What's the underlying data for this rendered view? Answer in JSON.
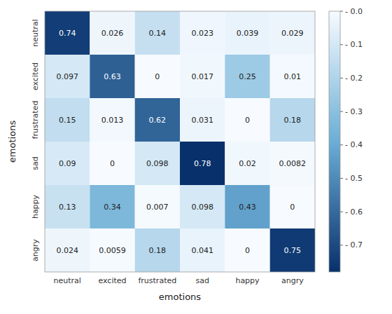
{
  "chart_data": {
    "type": "heatmap",
    "x_label": "emotions",
    "y_label": "emotions",
    "categories": [
      "neutral",
      "excited",
      "frustrated",
      "sad",
      "happy",
      "angry"
    ],
    "values": [
      [
        0.74,
        0.026,
        0.14,
        0.023,
        0.039,
        0.029
      ],
      [
        0.097,
        0.63,
        0,
        0.017,
        0.25,
        0.01
      ],
      [
        0.15,
        0.013,
        0.62,
        0.031,
        0,
        0.18
      ],
      [
        0.09,
        0,
        0.098,
        0.78,
        0.02,
        0.0082
      ],
      [
        0.13,
        0.34,
        0.007,
        0.098,
        0.43,
        0
      ],
      [
        0.024,
        0.0059,
        0.18,
        0.041,
        0,
        0.75
      ]
    ],
    "data_labels": true,
    "color": "#08306b",
    "color_range": [
      0.0,
      0.78
    ],
    "color_ticks": [
      {
        "value": 0.0,
        "label": "- 0.0"
      },
      {
        "value": 0.1,
        "label": "- 0.1"
      },
      {
        "value": 0.2,
        "label": "- 0.2"
      },
      {
        "value": 0.3,
        "label": "- 0.3"
      },
      {
        "value": 0.4,
        "label": "- 0.4"
      },
      {
        "value": 0.5,
        "label": "- 0.5"
      },
      {
        "value": 0.6,
        "label": "- 0.6"
      },
      {
        "value": 0.7,
        "label": "- 0.7"
      }
    ]
  }
}
